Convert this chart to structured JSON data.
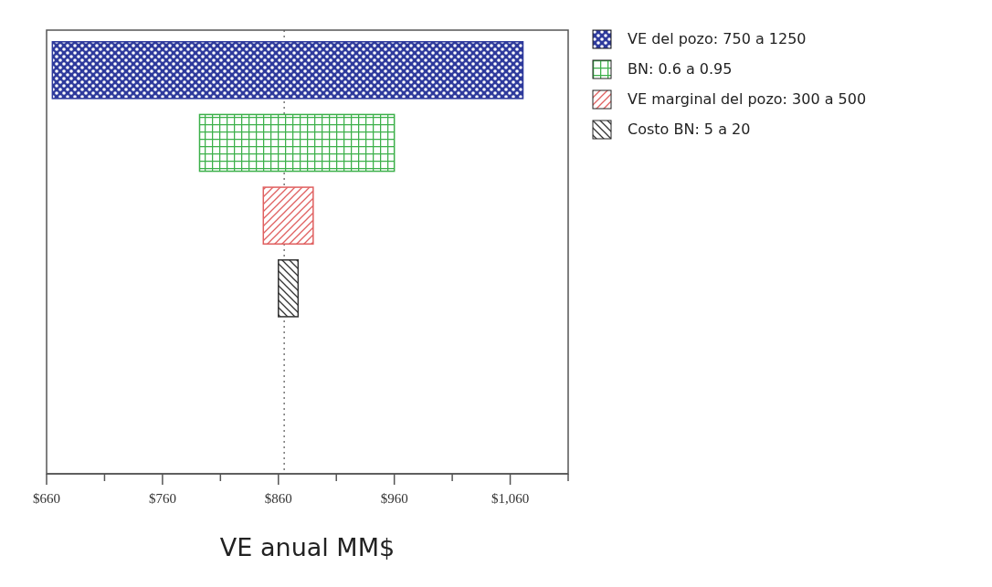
{
  "chart_data": {
    "type": "bar",
    "orientation": "horizontal",
    "xlabel": "VE anual MM$",
    "categories": [
      null,
      null,
      null,
      null,
      null,
      null
    ],
    "series": [
      {
        "name": "VE del pozo: 750 a 1250",
        "color": "#2e3a9c",
        "values": [
          406,
          null,
          null,
          null,
          null,
          null
        ],
        "base": [
          665,
          null,
          null,
          null,
          null,
          null
        ]
      },
      {
        "name": "BN: 0.6 a 0.95",
        "color": "#3cb04a",
        "values": [
          null,
          168,
          null,
          null,
          null,
          null
        ],
        "base": [
          null,
          792,
          null,
          null,
          null,
          null
        ]
      },
      {
        "name": "VE marginal del pozo: 300 a 500",
        "color": "#e06060",
        "values": [
          null,
          null,
          43,
          null,
          null,
          null
        ],
        "base": [
          null,
          null,
          847,
          null,
          null,
          null
        ]
      },
      {
        "name": "Costo BN: 5 a 20",
        "color": "#333333",
        "values": [
          null,
          null,
          null,
          17,
          null,
          null
        ],
        "base": [
          null,
          null,
          null,
          860,
          null,
          null
        ]
      }
    ],
    "xlim": [
      660,
      1110
    ],
    "xticks": [
      {
        "value": 660,
        "label": "$660"
      },
      {
        "value": 710,
        "label": null
      },
      {
        "value": 760,
        "label": "$760"
      },
      {
        "value": 810,
        "label": null
      },
      {
        "value": 860,
        "label": "$860"
      },
      {
        "value": 910,
        "label": null
      },
      {
        "value": 960,
        "label": "$960"
      },
      {
        "value": 1010,
        "label": null
      },
      {
        "value": 1060,
        "label": "$1,060"
      },
      {
        "value": 1110,
        "label": null
      }
    ],
    "ref_lines": [
      {
        "axis": "x",
        "value": 865,
        "label": null,
        "color": "#555555",
        "line_style": "dotted"
      }
    ],
    "legend": "right"
  }
}
